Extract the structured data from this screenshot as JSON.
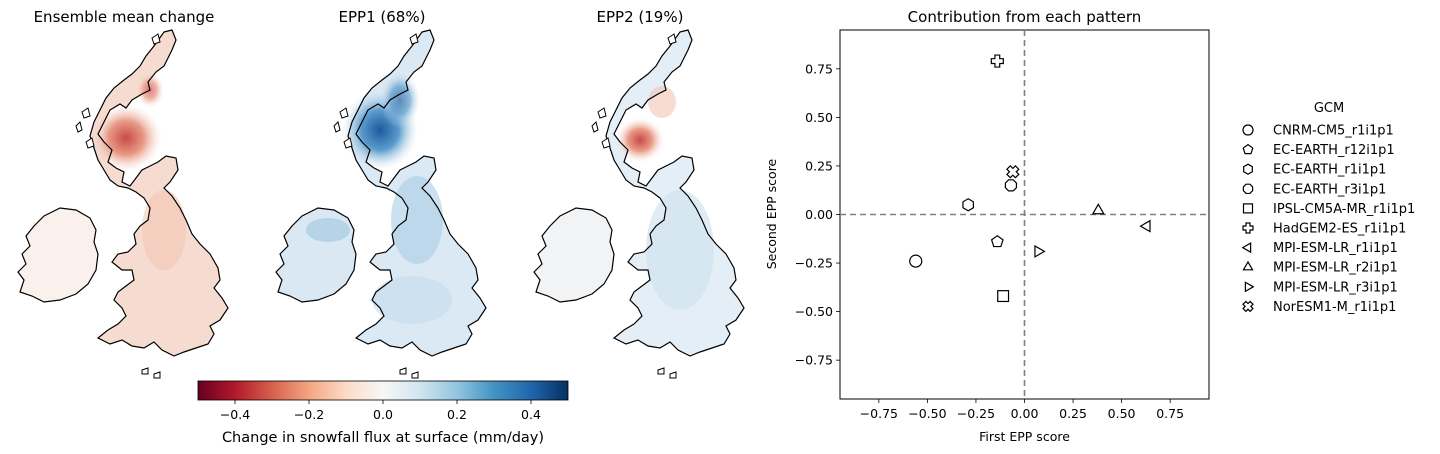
{
  "maps": [
    {
      "title": "Ensemble mean change"
    },
    {
      "title": "EPP1 (68%)"
    },
    {
      "title": "EPP2 (19%)"
    }
  ],
  "colorbar": {
    "label": "Change in snowfall flux at surface (mm/day)",
    "vmin": -0.5,
    "vmax": 0.5,
    "ticks": [
      "−0.4",
      "−0.2",
      "0.0",
      "0.2",
      "0.4"
    ],
    "tick_values": [
      -0.4,
      -0.2,
      0.0,
      0.2,
      0.4
    ],
    "colormap": [
      "#67001f",
      "#b2182b",
      "#d6604d",
      "#f4a582",
      "#fddbc7",
      "#f7f7f7",
      "#d1e5f0",
      "#92c5de",
      "#4393c3",
      "#2166ac",
      "#053061"
    ]
  },
  "chart_data": {
    "type": "scatter",
    "title": "Contribution from each pattern",
    "xlabel": "First EPP score",
    "ylabel": "Second EPP score",
    "xlim": [
      -0.95,
      0.95
    ],
    "ylim": [
      -0.95,
      0.95
    ],
    "xticks": [
      "−0.75",
      "−0.50",
      "−0.25",
      "0.00",
      "0.25",
      "0.50",
      "0.75"
    ],
    "xtick_values": [
      -0.75,
      -0.5,
      -0.25,
      0.0,
      0.25,
      0.5,
      0.75
    ],
    "yticks": [
      "0.75",
      "0.50",
      "0.25",
      "0.00",
      "−0.25",
      "−0.50",
      "−0.75"
    ],
    "ytick_values": [
      0.75,
      0.5,
      0.25,
      0.0,
      -0.25,
      -0.5,
      -0.75
    ],
    "reference_lines": {
      "x": 0,
      "y": 0,
      "style": "dashed",
      "color": "#808080"
    },
    "legend": {
      "title": "GCM",
      "placement": "outside-right"
    },
    "points": [
      {
        "name": "CNRM-CM5_r1i1p1",
        "marker": "circle",
        "x": -0.56,
        "y": -0.24
      },
      {
        "name": "EC-EARTH_r12i1p1",
        "marker": "pentagon",
        "x": -0.14,
        "y": -0.14
      },
      {
        "name": "EC-EARTH_r1i1p1",
        "marker": "hexagon",
        "x": -0.29,
        "y": 0.05
      },
      {
        "name": "EC-EARTH_r3i1p1",
        "marker": "octagon",
        "x": -0.07,
        "y": 0.15
      },
      {
        "name": "IPSL-CM5A-MR_r1i1p1",
        "marker": "square",
        "x": -0.11,
        "y": -0.42
      },
      {
        "name": "HadGEM2-ES_r1i1p1",
        "marker": "plus",
        "x": -0.14,
        "y": 0.79
      },
      {
        "name": "MPI-ESM-LR_r1i1p1",
        "marker": "triangle-left",
        "x": 0.63,
        "y": -0.06
      },
      {
        "name": "MPI-ESM-LR_r2i1p1",
        "marker": "triangle-up",
        "x": 0.38,
        "y": 0.02
      },
      {
        "name": "MPI-ESM-LR_r3i1p1",
        "marker": "triangle-right",
        "x": 0.07,
        "y": -0.19
      },
      {
        "name": "NorESM1-M_r1i1p1",
        "marker": "x-filled",
        "x": -0.06,
        "y": 0.22
      }
    ]
  }
}
